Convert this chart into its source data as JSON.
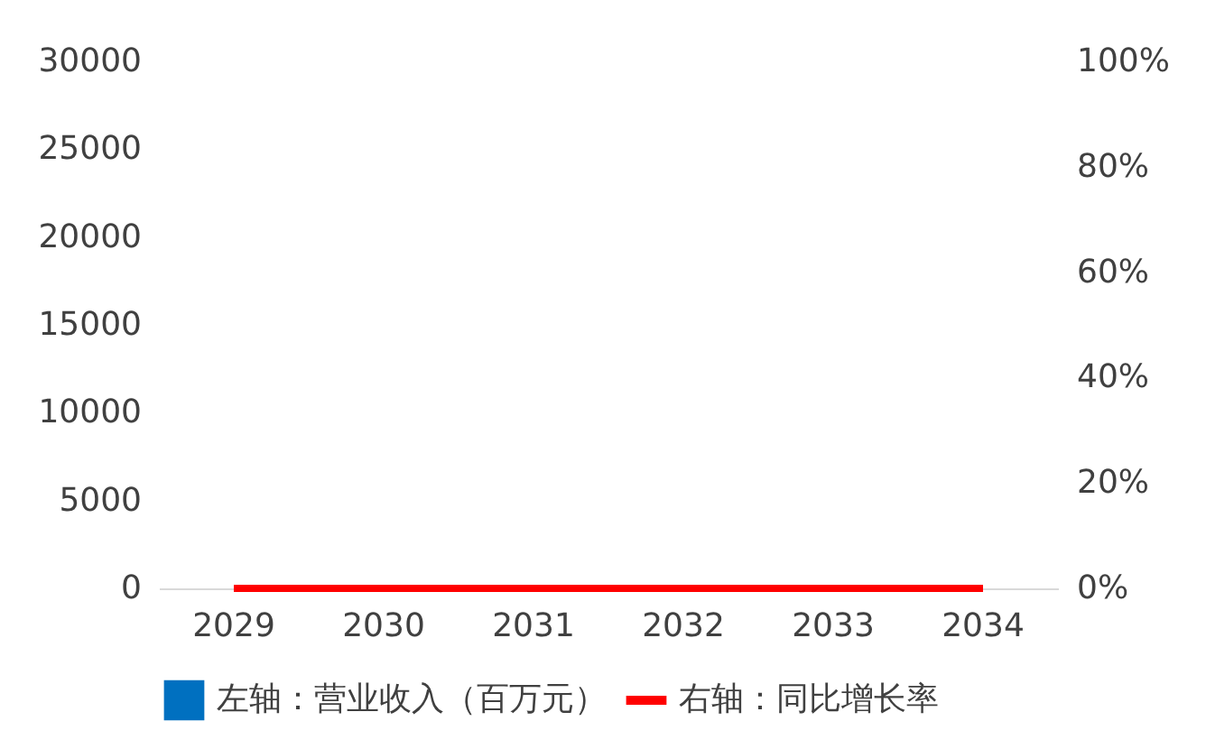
{
  "chart_data": {
    "type": "bar",
    "categories": [
      "2029",
      "2030",
      "2031",
      "2032",
      "2033",
      "2034"
    ],
    "series": [
      {
        "name": "左轴：营业收入（百万元）",
        "color": "#0070c0",
        "values": [
          0,
          0,
          0,
          0,
          0,
          0
        ]
      },
      {
        "name": "右轴：同比增长率",
        "type": "line",
        "axis": "y2",
        "color": "#ff0000",
        "values": [
          0,
          0,
          0,
          0,
          0,
          0
        ]
      }
    ],
    "ylim": [
      0,
      30000
    ],
    "yticks": [
      0,
      5000,
      10000,
      15000,
      20000,
      25000,
      30000
    ],
    "y2lim": [
      0,
      100
    ],
    "y2ticks": [
      {
        "value": 0,
        "label": "0%"
      },
      {
        "value": 20,
        "label": "20%"
      },
      {
        "value": 40,
        "label": "40%"
      },
      {
        "value": 60,
        "label": "60%"
      },
      {
        "value": 80,
        "label": "80%"
      },
      {
        "value": 100,
        "label": "100%"
      }
    ],
    "grid": false,
    "legend": "bottom"
  }
}
